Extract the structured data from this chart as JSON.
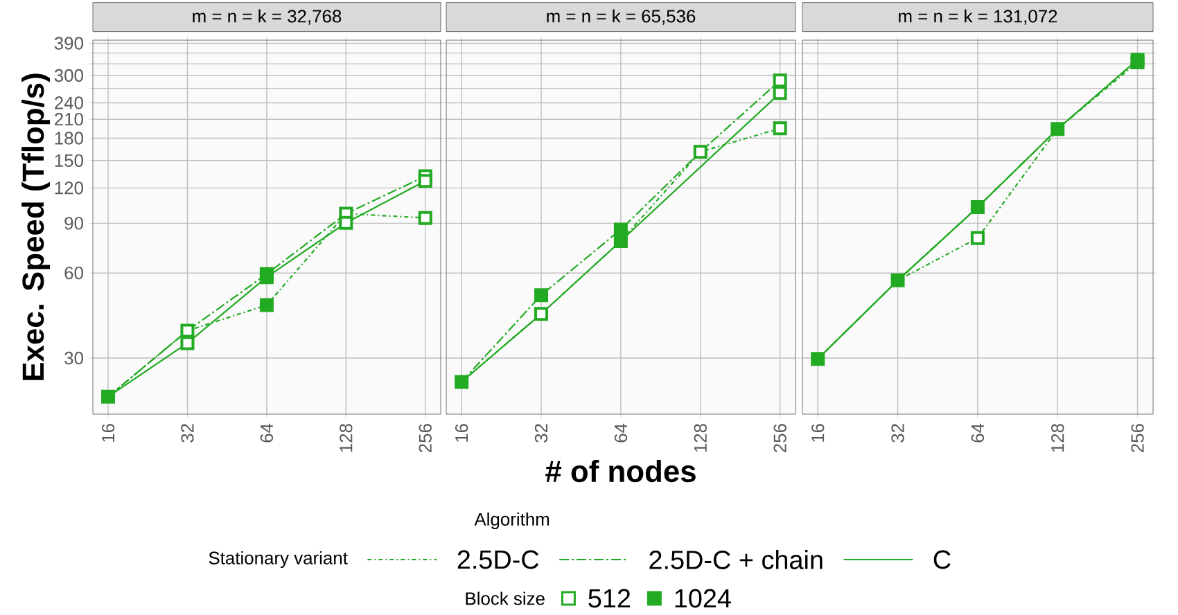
{
  "chart_data": [
    {
      "type": "line",
      "title": "m = n = k = 32,768",
      "ylabel": "Exec. Speed (Tflop/s)",
      "log": "xy",
      "grid": true,
      "x": [
        16,
        32,
        64,
        128,
        256
      ],
      "xlim": [
        14,
        293
      ],
      "ylim": [
        19,
        400
      ],
      "xticks": [
        16,
        32,
        64,
        128,
        256
      ],
      "yticks": [
        30,
        60,
        90,
        120,
        150,
        180,
        210,
        240,
        {
          "value": 270,
          "label": null
        },
        300,
        {
          "value": 330,
          "label": null
        },
        {
          "value": 360,
          "label": null
        },
        390
      ],
      "series": [
        {
          "color": "#22aa22",
          "line_style": "dashdot",
          "values": [
            21.9,
            37.5,
            46.2,
            97.3,
            94
          ]
        },
        {
          "color": "#22aa22",
          "line_style": "longdashdot",
          "values": [
            21.9,
            37.5,
            59.5,
            97.3,
            132
          ]
        },
        {
          "color": "#22aa22",
          "line_style": "solid",
          "values": [
            21.9,
            33.9,
            58,
            90.3,
            127
          ]
        },
        {
          "type": "scatter",
          "marker": "square",
          "color": "#ffffff",
          "x": [
            32,
            32,
            128,
            128,
            256,
            256,
            256
          ],
          "values": [
            37.5,
            33.9,
            97.3,
            90.3,
            132,
            127,
            94
          ]
        },
        {
          "type": "scatter",
          "marker": "square",
          "color": "#22aa22",
          "x": [
            16,
            64,
            64,
            64
          ],
          "values": [
            21.9,
            59.5,
            58,
            46.2
          ]
        }
      ]
    },
    {
      "type": "line",
      "title": "m = n = k = 65,536",
      "xlabel": "# of nodes",
      "log": "xy",
      "grid": true,
      "tick_labels": "x",
      "legend": "bottom",
      "legend_title": "Stationary variant",
      "annotations": [
        "Algorithm",
        "Block size"
      ],
      "x": [
        16,
        32,
        64,
        128,
        256
      ],
      "xlim": [
        14,
        293
      ],
      "ylim": [
        19,
        400
      ],
      "xticks": [
        16,
        32,
        64,
        128,
        256
      ],
      "yticks": [
        30,
        60,
        90,
        120,
        150,
        180,
        210,
        240,
        270,
        300,
        330,
        360,
        390
      ],
      "series": [
        {
          "name": "2.5D-C",
          "color": "#22aa22",
          "line_style": "dashdot",
          "values": [
            24.7,
            43.0,
            77.9,
            161,
            195
          ]
        },
        {
          "name": "2.5D-C + chain",
          "color": "#22aa22",
          "line_style": "longdashdot",
          "values": [
            24.7,
            50.1,
            85.5,
            161,
            288
          ]
        },
        {
          "name": "C",
          "color": "#22aa22",
          "line_style": "solid",
          "values": [
            24.7,
            43.0,
            77.9,
            null,
            260
          ]
        },
        {
          "name": "512",
          "type": "scatter",
          "marker": "square",
          "color": "#ffffff",
          "x": [
            32,
            128,
            256,
            256,
            256
          ],
          "values": [
            43.0,
            161,
            288,
            260,
            195
          ]
        },
        {
          "name": "1024",
          "type": "scatter",
          "marker": "square",
          "color": "#22aa22",
          "x": [
            16,
            32,
            64,
            64
          ],
          "values": [
            24.7,
            50.1,
            85.5,
            77.9
          ]
        }
      ]
    },
    {
      "type": "line",
      "title": "m = n = k = 131,072",
      "log": "xy",
      "grid": true,
      "tick_labels": "x",
      "x": [
        16,
        32,
        64,
        128,
        256
      ],
      "xlim": [
        14,
        293
      ],
      "ylim": [
        19,
        400
      ],
      "xticks": [
        16,
        32,
        64,
        128,
        256
      ],
      "yticks": [
        30,
        60,
        90,
        120,
        150,
        180,
        210,
        240,
        270,
        300,
        330,
        360,
        390
      ],
      "series": [
        {
          "color": "#22aa22",
          "line_style": "dashdot",
          "values": [
            29.8,
            56.5,
            79.8,
            194,
            334
          ]
        },
        {
          "color": "#22aa22",
          "line_style": "longdashdot",
          "values": [
            29.8,
            56.5,
            102.6,
            194,
            341
          ]
        },
        {
          "color": "#22aa22",
          "line_style": "solid",
          "values": [
            29.8,
            56.5,
            102.6,
            194,
            341
          ]
        },
        {
          "type": "scatter",
          "marker": "square",
          "color": "#ffffff",
          "x": [
            64
          ],
          "values": [
            79.8
          ]
        },
        {
          "type": "scatter",
          "marker": "square",
          "color": "#22aa22",
          "x": [
            16,
            32,
            64,
            128,
            256,
            256
          ],
          "values": [
            29.8,
            56.5,
            102.6,
            194,
            341,
            334
          ]
        }
      ]
    }
  ]
}
